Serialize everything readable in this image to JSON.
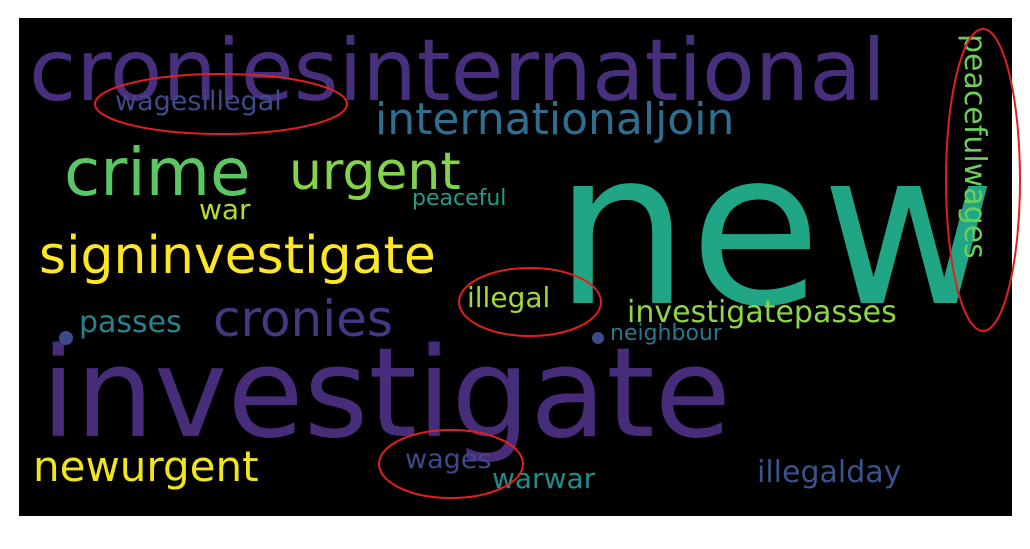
{
  "word_cloud": {
    "background": "#000000",
    "words": [
      {
        "id": "w-croniesinternational",
        "text": "croniesinternational",
        "color": "#482f7d"
      },
      {
        "id": "w-internationaljoin",
        "text": "internationaljoin",
        "color": "#2f6e8e"
      },
      {
        "id": "w-wagesillegal",
        "text": "wagesillegal",
        "color": "#3f4a8a"
      },
      {
        "id": "w-crime",
        "text": "crime",
        "color": "#5ac664"
      },
      {
        "id": "w-urgent",
        "text": "urgent",
        "color": "#84d44b"
      },
      {
        "id": "w-new",
        "text": "new",
        "color": "#21a685"
      },
      {
        "id": "w-war-1",
        "text": "war",
        "color": "#b2dd2d"
      },
      {
        "id": "w-peaceful",
        "text": "peaceful",
        "color": "#1f9e89"
      },
      {
        "id": "w-signinvestigate",
        "text": "signinvestigate",
        "color": "#fde725"
      },
      {
        "id": "w-cronies",
        "text": "cronies",
        "color": "#453882"
      },
      {
        "id": "w-illegal",
        "text": "illegal",
        "color": "#a0da39"
      },
      {
        "id": "w-investigatepasses",
        "text": "investigatepasses",
        "color": "#8ed645"
      },
      {
        "id": "w-passes",
        "text": "passes",
        "color": "#25858e"
      },
      {
        "id": "w-neighbour",
        "text": "neighbour",
        "color": "#2a788e"
      },
      {
        "id": "w-peacefulwages",
        "text": "peacefulwages",
        "color": "#6ccd5a"
      },
      {
        "id": "w-investigate",
        "text": "investigate",
        "color": "#472c7a"
      },
      {
        "id": "w-newurgent",
        "text": "newurgent",
        "color": "#f1e51d"
      },
      {
        "id": "w-wages",
        "text": "wages",
        "color": "#3e4989"
      },
      {
        "id": "w-warwar",
        "text": "warwar",
        "color": "#228c8d"
      },
      {
        "id": "w-illegalday",
        "text": "illegalday",
        "color": "#3b528b"
      }
    ]
  },
  "annotations": {
    "stroke_color": "#e0201e",
    "highlighted": [
      "wagesillegal",
      "illegal",
      "wages",
      "peacefulwages"
    ]
  }
}
